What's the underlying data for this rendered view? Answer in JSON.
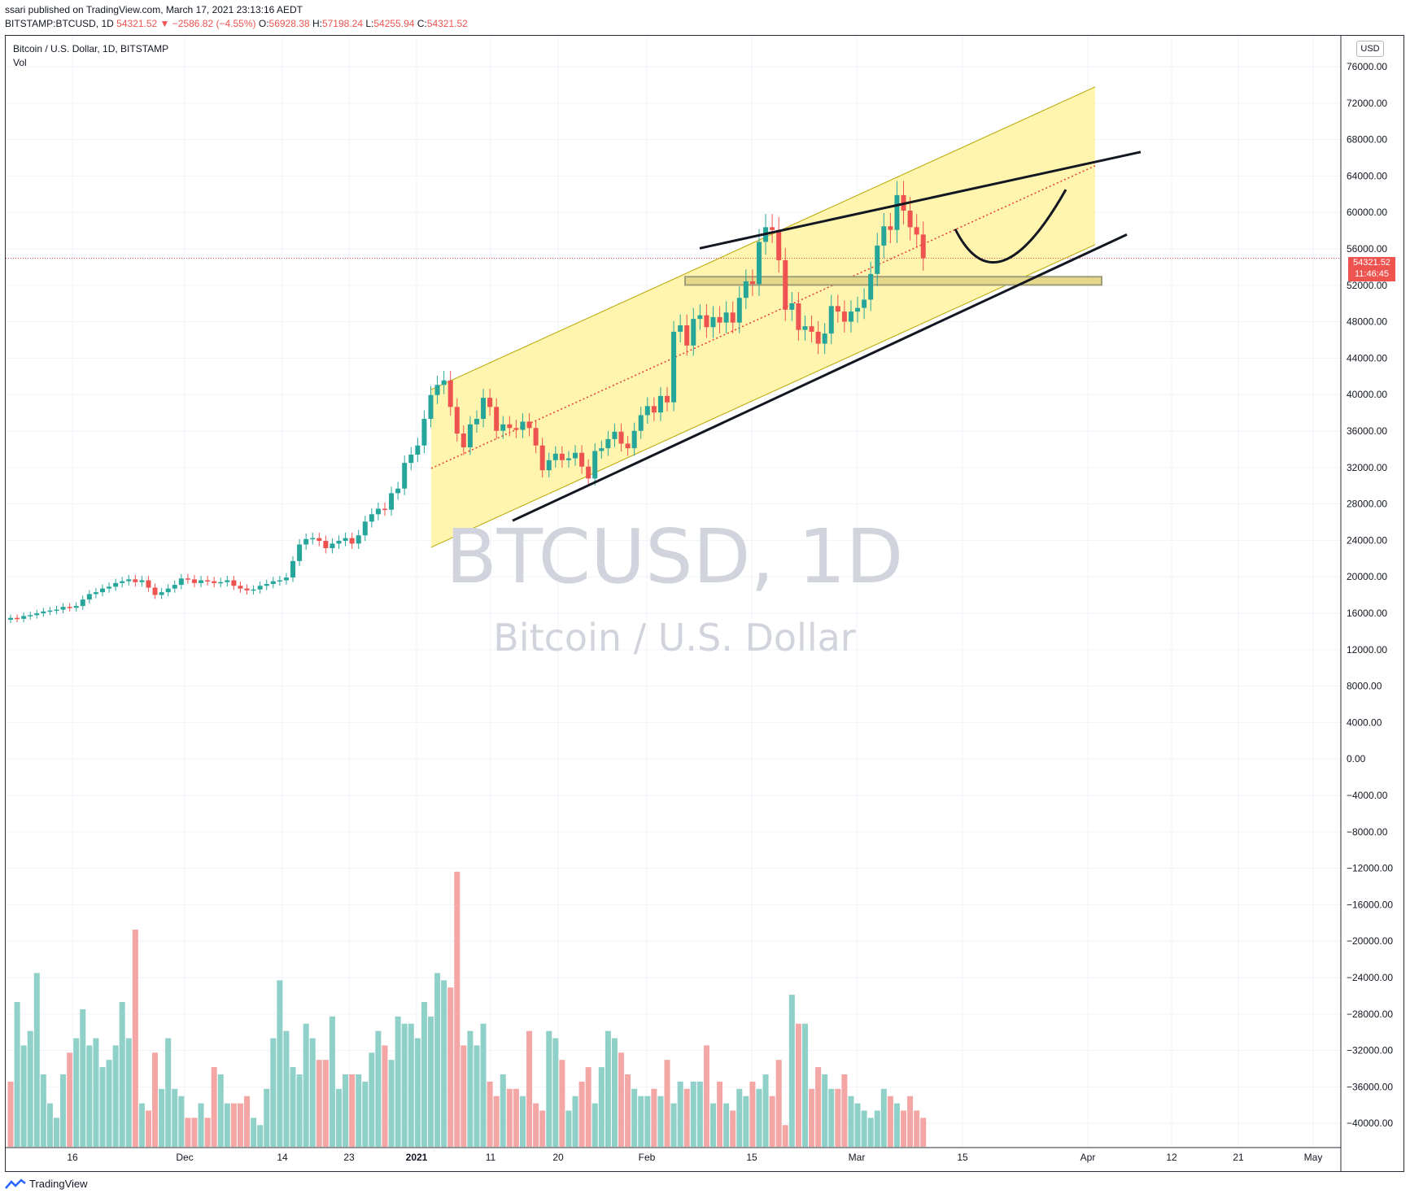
{
  "header": {
    "published_line": "ssari published on TradingView.com, March 17, 2021 23:13:16 AEDT",
    "symbol": "BITSTAMP:BTCUSD, 1D",
    "last": "54321.52",
    "change": "▼ −2586.82 (−4.55%)",
    "o_label": "O:",
    "o_value": "56928.38",
    "h_label": "H:",
    "h_value": "57198.24",
    "l_label": "L:",
    "l_value": "54255.94",
    "c_label": "C:",
    "c_value": "54321.52"
  },
  "legend": {
    "title": "Bitcoin / U.S. Dollar, 1D, BITSTAMP",
    "volume_label": "Vol"
  },
  "currency_button": "USD",
  "price_tag": {
    "price": "54321.52",
    "countdown": "11:46:45"
  },
  "watermark": {
    "symbol": "BTCUSD, 1D",
    "description": "Bitcoin / U.S. Dollar"
  },
  "footer": {
    "brand": "TradingView"
  },
  "colors": {
    "up": "#26a69a",
    "down": "#ef5350",
    "vol_up": "#8fd0c8",
    "vol_down": "#f4a6a5",
    "channel_fill": "#fff3a0",
    "channel_line": "#b8a600",
    "grid": "#f0f3fa"
  },
  "chart_data": {
    "type": "candlestick",
    "title": "Bitcoin / U.S. Dollar, 1D, BITSTAMP",
    "y_ticks": [
      "76000.00",
      "72000.00",
      "68000.00",
      "64000.00",
      "60000.00",
      "56000.00",
      "52000.00",
      "48000.00",
      "44000.00",
      "40000.00",
      "36000.00",
      "32000.00",
      "28000.00",
      "24000.00",
      "20000.00",
      "16000.00",
      "12000.00",
      "8000.00",
      "4000.00",
      "0.00",
      "−4000.00",
      "−8000.00",
      "−12000.00",
      "−16000.00",
      "−20000.00",
      "−24000.00",
      "−28000.00",
      "−32000.00",
      "−36000.00",
      "−40000.00"
    ],
    "x_ticks": [
      "16",
      "Dec",
      "14",
      "23",
      "2021",
      "11",
      "20",
      "Feb",
      "15",
      "Mar",
      "15",
      "Apr",
      "12",
      "21",
      "May"
    ],
    "x_tick_bold": [
      "2021"
    ],
    "ylim": [
      -42800,
      77000
    ],
    "last_price": 54321.52,
    "closes": [
      15100,
      15000,
      15300,
      15400,
      15600,
      15800,
      15900,
      16000,
      16300,
      16200,
      16400,
      17100,
      17700,
      17900,
      18300,
      18500,
      18900,
      19100,
      19300,
      19000,
      19200,
      18400,
      17600,
      17900,
      18300,
      18700,
      19400,
      19300,
      18900,
      19200,
      19100,
      18900,
      19000,
      19200,
      18600,
      18300,
      18100,
      18200,
      18600,
      18800,
      19100,
      19200,
      19500,
      21300,
      23100,
      23700,
      23800,
      23500,
      22700,
      23200,
      23500,
      23800,
      23200,
      24100,
      25600,
      26400,
      27000,
      26900,
      28700,
      29200,
      32000,
      32900,
      33900,
      36800,
      39400,
      40500,
      41000,
      38100,
      35200,
      33700,
      36200,
      36800,
      39100,
      38100,
      35500,
      36200,
      35800,
      35600,
      36500,
      35800,
      33900,
      31200,
      32300,
      33000,
      32300,
      32500,
      33100,
      31600,
      30300,
      33300,
      33600,
      34600,
      35400,
      34100,
      33600,
      35500,
      37200,
      38200,
      37500,
      39300,
      38600,
      46300,
      47000,
      44800,
      47700,
      48100,
      46800,
      47900,
      47300,
      48400,
      47300,
      50000,
      51800,
      51500,
      56100,
      57700,
      57400,
      54100,
      48700,
      49400,
      46500,
      46900,
      46300,
      45000,
      46100,
      49100,
      48500,
      47400,
      48500,
      48900,
      49800,
      52600,
      55700,
      57800,
      57400,
      61200,
      59500,
      57700,
      56900,
      54321
    ],
    "volume": {
      "labels": "Vol",
      "values": [
        9,
        20,
        14,
        16,
        24,
        10,
        6,
        4,
        10,
        13,
        15,
        19,
        14,
        15,
        11,
        12,
        14,
        20,
        15,
        30,
        6,
        5,
        13,
        8,
        15,
        8,
        7,
        4,
        4,
        6,
        4,
        11,
        10,
        6,
        6,
        6,
        7,
        4,
        3,
        8,
        15,
        23,
        16,
        11,
        10,
        17,
        15,
        12,
        12,
        18,
        8,
        10,
        10,
        10,
        9,
        13,
        16,
        14,
        12,
        18,
        17,
        17,
        15,
        20,
        18,
        24,
        23,
        22,
        38,
        14,
        16,
        14,
        17,
        9,
        7,
        10,
        8,
        8,
        7,
        16,
        6,
        5,
        16,
        15,
        12,
        5,
        7,
        9,
        11,
        6,
        11,
        16,
        15,
        13,
        10,
        8,
        7,
        7,
        8,
        7,
        12,
        6,
        9,
        8,
        9,
        9,
        14,
        6,
        9,
        6,
        5,
        8,
        7,
        9,
        8,
        10,
        7,
        12,
        3,
        21,
        17,
        17,
        8,
        11,
        10,
        8,
        8,
        10,
        7,
        6,
        5,
        4,
        5,
        8,
        7,
        6,
        5,
        7,
        5,
        4
      ],
      "directions": [
        0,
        1,
        1,
        1,
        1,
        1,
        1,
        1,
        1,
        0,
        1,
        1,
        1,
        1,
        1,
        1,
        1,
        1,
        1,
        0,
        1,
        0,
        0,
        1,
        1,
        1,
        1,
        0,
        0,
        1,
        0,
        0,
        1,
        1,
        0,
        0,
        0,
        1,
        1,
        1,
        1,
        1,
        1,
        1,
        1,
        1,
        1,
        0,
        0,
        1,
        1,
        1,
        0,
        1,
        1,
        1,
        1,
        0,
        1,
        1,
        1,
        1,
        1,
        1,
        1,
        1,
        1,
        0,
        0,
        0,
        1,
        1,
        1,
        0,
        0,
        1,
        0,
        0,
        1,
        0,
        0,
        0,
        1,
        1,
        0,
        1,
        1,
        0,
        0,
        1,
        1,
        1,
        1,
        0,
        0,
        1,
        1,
        1,
        0,
        1,
        0,
        1,
        1,
        0,
        1,
        1,
        0,
        1,
        0,
        1,
        0,
        1,
        1,
        0,
        1,
        1,
        0,
        0,
        0,
        1,
        0,
        1,
        0,
        0,
        1,
        1,
        0,
        0,
        1,
        1,
        1,
        1,
        1,
        1,
        0,
        1,
        0,
        0,
        0,
        0
      ]
    },
    "annotations": [
      "Yellow ascending parallel channel with dotted red median line",
      "Upper resistance trend line",
      "Lower support trend line",
      "Horizontal support zone near 51500",
      "Curved projection (cup) from ~57000 down to ~51500 then up toward ~62000"
    ]
  }
}
